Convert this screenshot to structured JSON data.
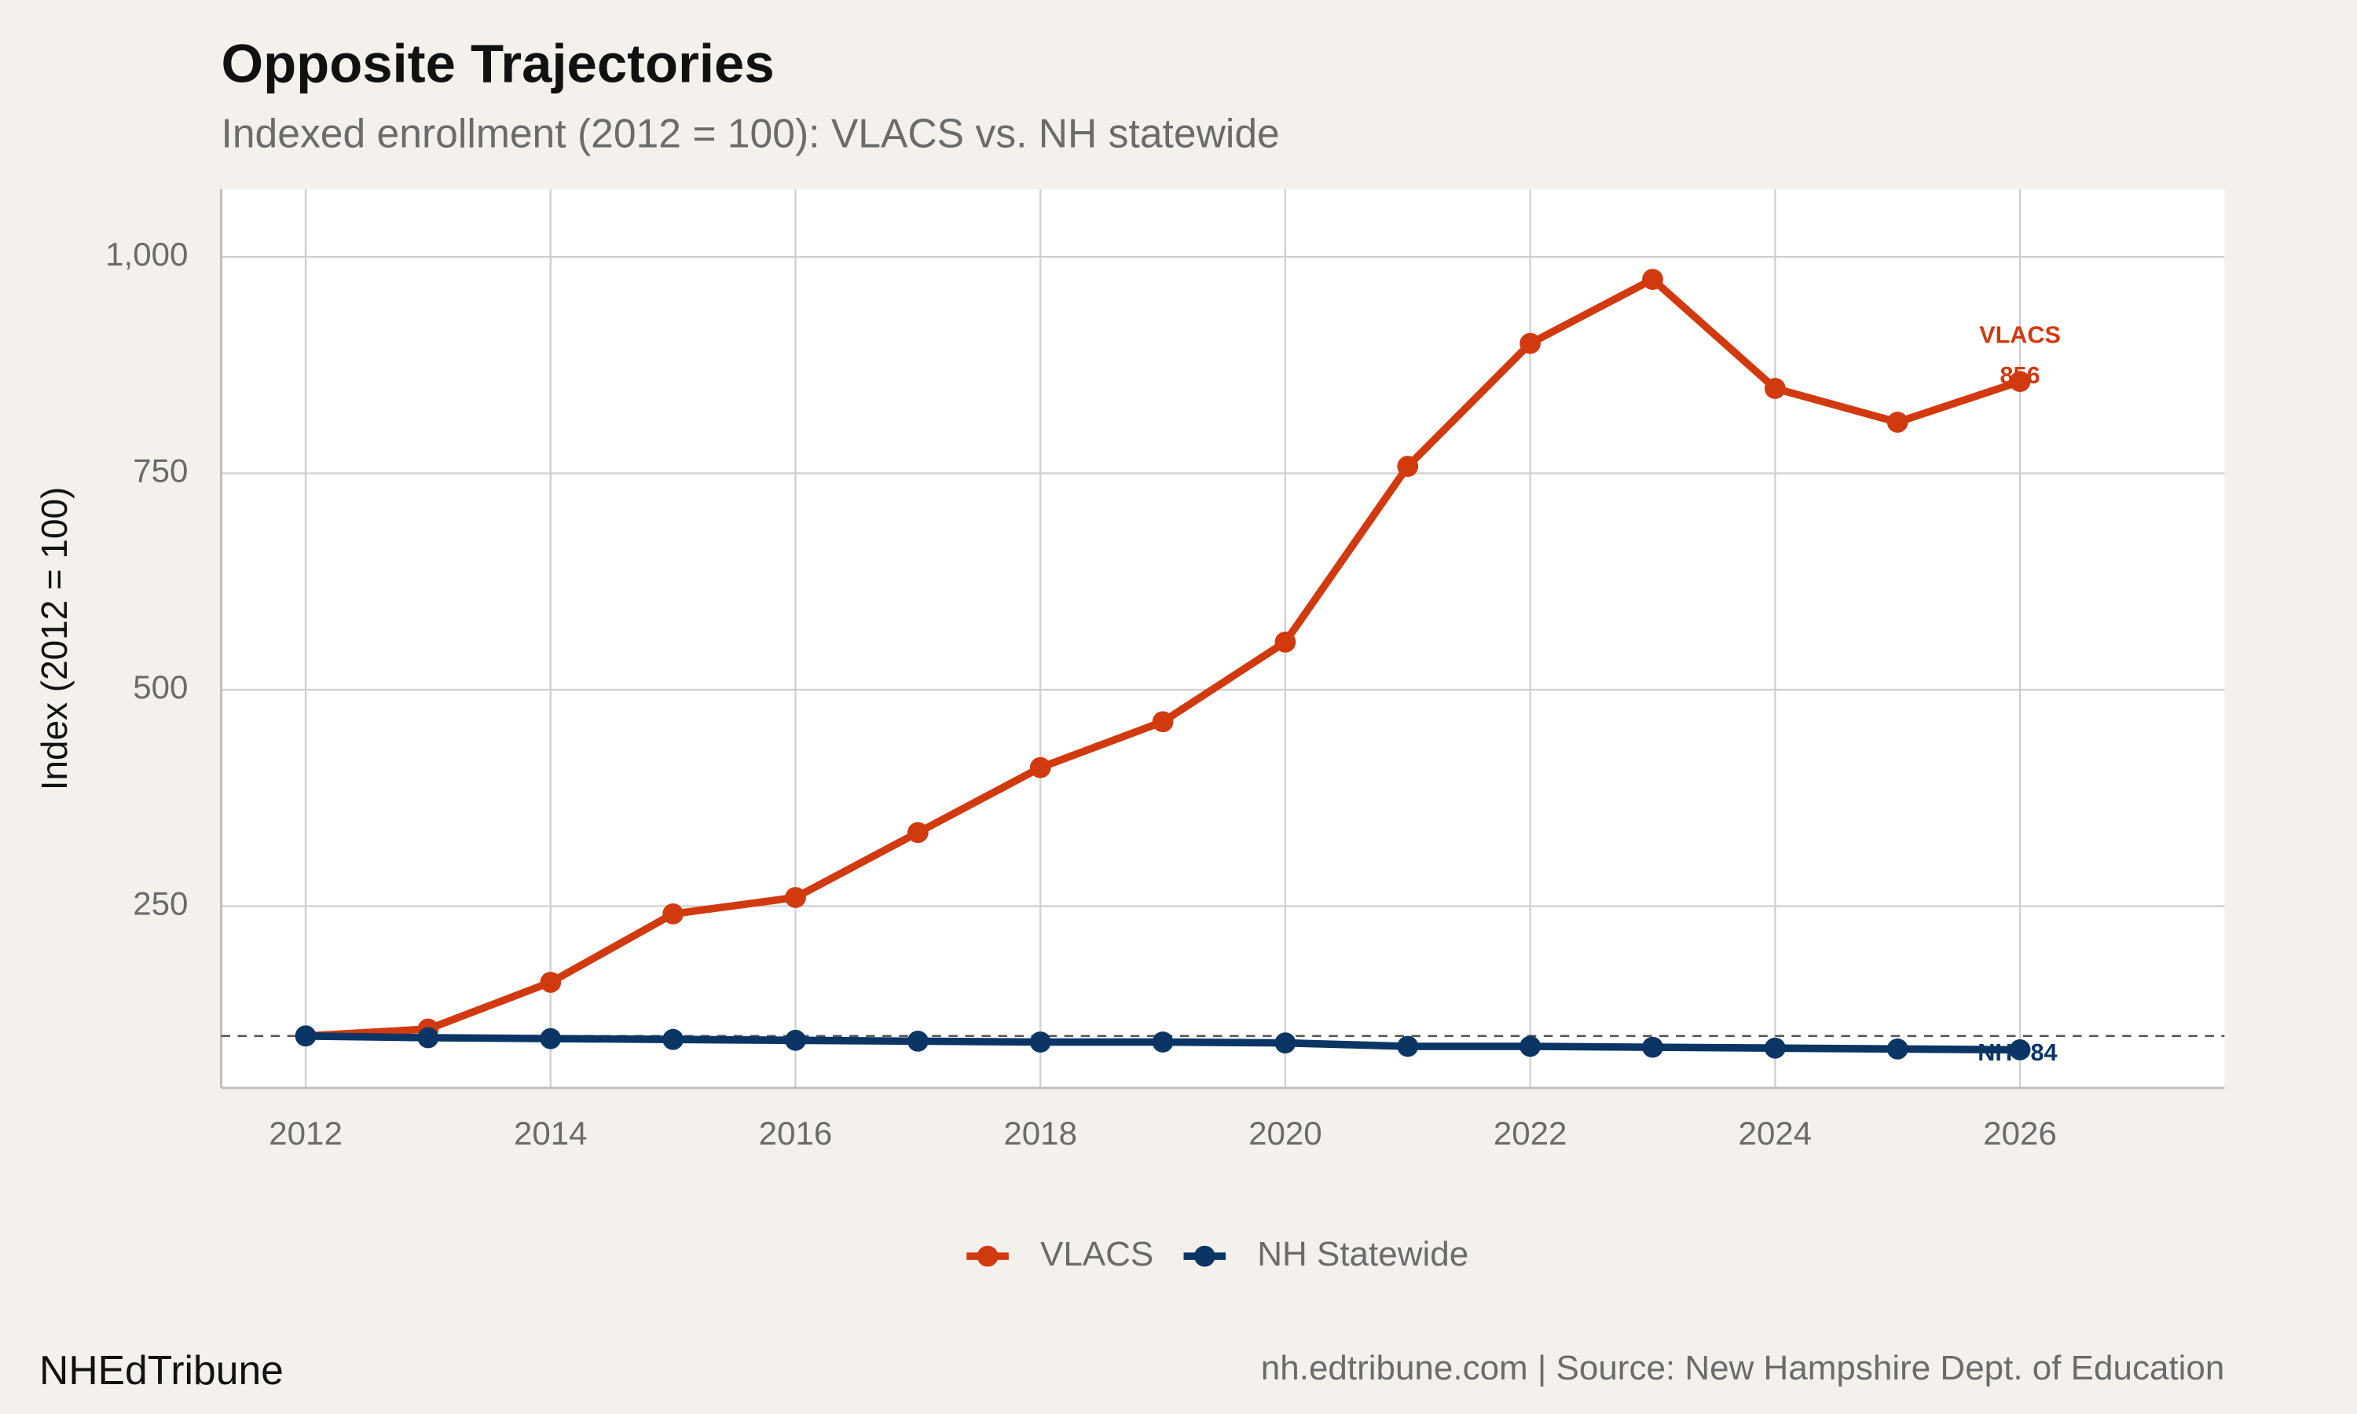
{
  "chart_data": {
    "type": "line",
    "title": "Opposite Trajectories",
    "subtitle": "Indexed enrollment (2012 = 100): VLACS vs. NH statewide",
    "y_label": "Index (2012 = 100)",
    "x": [
      2012,
      2013,
      2014,
      2015,
      2016,
      2017,
      2018,
      2019,
      2020,
      2021,
      2022,
      2023,
      2024,
      2025,
      2026
    ],
    "series": [
      {
        "name": "VLACS",
        "color": "#d13a0f",
        "end_label": "VLACS",
        "values": [
          100,
          108,
          162,
          241,
          260,
          335,
          410,
          463,
          555,
          758,
          900,
          974,
          848,
          809,
          856
        ]
      },
      {
        "name": "NH Statewide",
        "color": "#0b3565",
        "end_label": "NH",
        "values": [
          100,
          98,
          97,
          96,
          95,
          94,
          93,
          93,
          92,
          88,
          88,
          87,
          86,
          85,
          84
        ]
      }
    ],
    "xlim": [
      2011.31,
      2027.67
    ],
    "xticks": [
      2012,
      2014,
      2016,
      2018,
      2020,
      2022,
      2024,
      2026
    ],
    "ylim": [
      40,
      1078
    ],
    "yticks": [
      250,
      500,
      750,
      {
        "value": 1000,
        "label": "1,000"
      }
    ],
    "reference_line": 100,
    "grid": true,
    "legend": "bottom",
    "brand": "NHEdTribune",
    "source": "nh.edtribune.com | Source: New Hampshire Dept. of Education"
  }
}
